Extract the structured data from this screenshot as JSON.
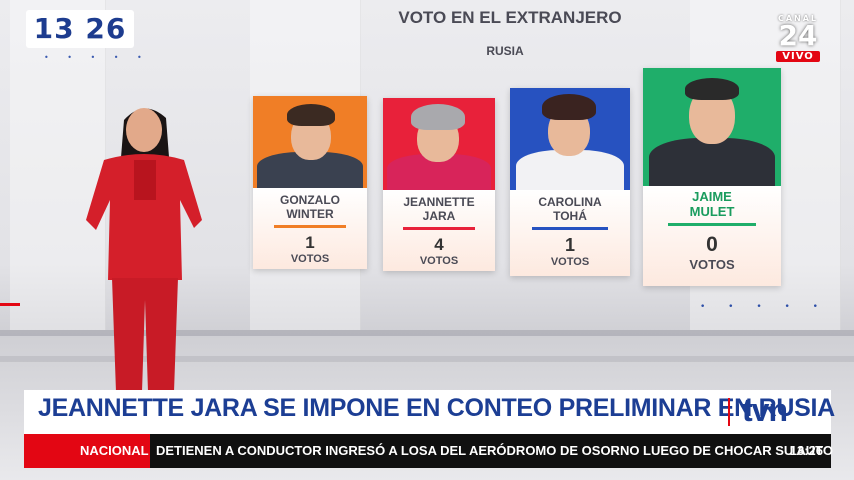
{
  "clock": {
    "time": "13 26"
  },
  "channel": {
    "canal": "CANAL",
    "number": "24",
    "live": "VIVO"
  },
  "graphic": {
    "title": "VOTO EN EL EXTRANJERO",
    "subtitle": "RUSIA",
    "candidates": [
      {
        "name_line1": "GONZALO",
        "name_line2": "WINTER",
        "votes": "1",
        "votes_label": "VOTOS",
        "color": "#f07e26"
      },
      {
        "name_line1": "JEANNETTE",
        "name_line2": "JARA",
        "votes": "4",
        "votes_label": "VOTOS",
        "color": "#e8213a"
      },
      {
        "name_line1": "CAROLINA",
        "name_line2": "TOHÁ",
        "votes": "1",
        "votes_label": "VOTOS",
        "color": "#2752c0"
      },
      {
        "name_line1": "JAIME",
        "name_line2": "MULET",
        "votes": "0",
        "votes_label": "VOTOS",
        "color": "#1fae6a"
      }
    ]
  },
  "lower_third": {
    "headline": "JEANNETTE JARA SE IMPONE EN CONTEO PRELIMINAR EN RUSIA",
    "logo": "tvn"
  },
  "ticker": {
    "section": "NACIONAL",
    "news": "DETIENEN A CONDUCTOR INGRESÓ A LOSA DEL AERÓDROMO DE OSORNO LUEGO DE CHOCAR SU AUTO",
    "time": "13:26"
  }
}
